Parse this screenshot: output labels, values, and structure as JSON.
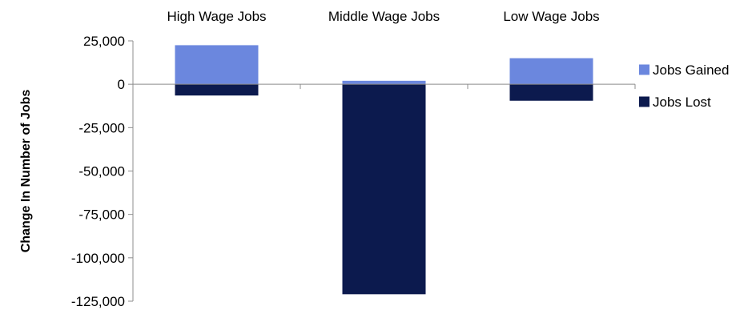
{
  "chart_data": {
    "type": "bar",
    "stacked": true,
    "categories": [
      "High Wage Jobs",
      "Middle Wage Jobs",
      "Low Wage Jobs"
    ],
    "series": [
      {
        "name": "Jobs Gained",
        "values": [
          22500,
          2000,
          15000
        ],
        "color": "#6b87de"
      },
      {
        "name": "Jobs Lost",
        "values": [
          -6500,
          -121000,
          -9500
        ],
        "color": "#0c1a4e"
      }
    ],
    "ylabel": "Change In Number of Jobs",
    "xlabel": "",
    "ylim": [
      -125000,
      25000
    ],
    "yticks": [
      25000,
      0,
      -25000,
      -50000,
      -75000,
      -100000,
      -125000
    ],
    "ytick_labels": [
      "25,000",
      "0",
      "-25,000",
      "-50,000",
      "-75,000",
      "-100,000",
      "-125,000"
    ],
    "category_labels_position": "top",
    "legend_position": "right",
    "grid": false
  }
}
